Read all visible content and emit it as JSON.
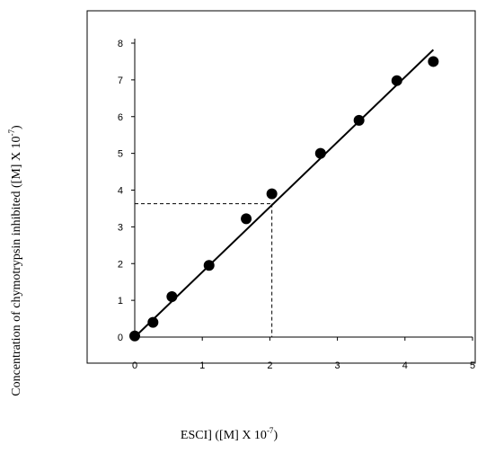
{
  "chart_data": {
    "type": "scatter",
    "title": "",
    "xlabel": "ESCI] ([M] X 10",
    "xlabel_exp": "-7",
    "xlabel_suffix": ")",
    "ylabel": "Concentration of chymotrypsin inhibited ([M] X 10",
    "ylabel_exp": "-7",
    "ylabel_suffix": ")",
    "xlim": [
      0,
      5
    ],
    "ylim": [
      0,
      8
    ],
    "x_ticks": [
      "0",
      "1",
      "2",
      "3",
      "4",
      "5"
    ],
    "y_ticks": [
      "0",
      "1",
      "2",
      "3",
      "4",
      "5",
      "6",
      "7",
      "8"
    ],
    "grid": false,
    "legend": "none",
    "series": [
      {
        "x": [
          0,
          0.27,
          0.55,
          1.1,
          1.65,
          2.03,
          2.75,
          3.32,
          3.88,
          4.42
        ],
        "y": [
          0.03,
          0.4,
          1.1,
          1.95,
          3.22,
          3.9,
          5.0,
          5.9,
          6.98,
          7.5
        ]
      }
    ],
    "fit_line": {
      "x": [
        0,
        4.42
      ],
      "y": [
        0,
        7.82
      ]
    },
    "reference_point": {
      "x": 2.03,
      "y": 3.63
    },
    "colors": {
      "marker": "#000000",
      "line": "#000000"
    }
  }
}
